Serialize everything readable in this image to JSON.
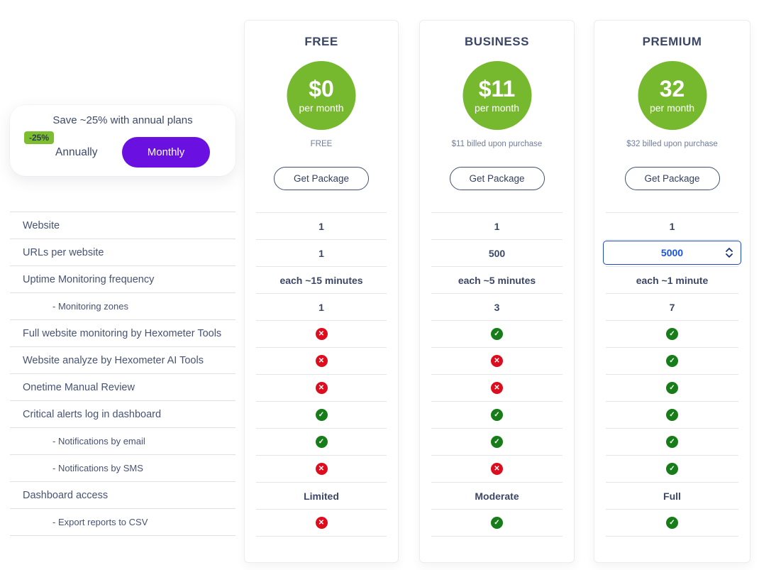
{
  "toggle": {
    "title": "Save ~25% with annual plans",
    "discount_badge": "-25%",
    "annually_label": "Annually",
    "monthly_label": "Monthly"
  },
  "features": [
    {
      "label": "Website",
      "indent": false
    },
    {
      "label": "URLs per website",
      "indent": false
    },
    {
      "label": "Uptime Monitoring frequency",
      "indent": false
    },
    {
      "label": "- Monitoring zones",
      "indent": true
    },
    {
      "label": "Full website monitoring by Hexometer Tools",
      "indent": false
    },
    {
      "label": "Website analyze by Hexometer AI Tools",
      "indent": false
    },
    {
      "label": "Onetime Manual Review",
      "indent": false
    },
    {
      "label": "Critical alerts log in dashboard",
      "indent": false
    },
    {
      "label": "- Notifications by email",
      "indent": true
    },
    {
      "label": "- Notifications by SMS",
      "indent": true
    },
    {
      "label": "Dashboard access",
      "indent": false
    },
    {
      "label": "- Export reports to CSV",
      "indent": true
    }
  ],
  "plans": [
    {
      "name": "FREE",
      "price": "$0",
      "period": "per month",
      "billing_note": "FREE",
      "cta_label": "Get Package",
      "values": [
        {
          "type": "text",
          "text": "1"
        },
        {
          "type": "text",
          "text": "1"
        },
        {
          "type": "text",
          "text": "each ~15 minutes"
        },
        {
          "type": "text",
          "text": "1"
        },
        {
          "type": "cross"
        },
        {
          "type": "cross"
        },
        {
          "type": "cross"
        },
        {
          "type": "check"
        },
        {
          "type": "check"
        },
        {
          "type": "cross"
        },
        {
          "type": "text",
          "text": "Limited"
        },
        {
          "type": "cross"
        }
      ]
    },
    {
      "name": "BUSINESS",
      "price": "$11",
      "period": "per month",
      "billing_note": "$11 billed upon purchase",
      "cta_label": "Get Package",
      "values": [
        {
          "type": "text",
          "text": "1"
        },
        {
          "type": "text",
          "text": "500"
        },
        {
          "type": "text",
          "text": "each ~5 minutes"
        },
        {
          "type": "text",
          "text": "3"
        },
        {
          "type": "check"
        },
        {
          "type": "cross"
        },
        {
          "type": "cross"
        },
        {
          "type": "check"
        },
        {
          "type": "check"
        },
        {
          "type": "cross"
        },
        {
          "type": "text",
          "text": "Moderate"
        },
        {
          "type": "check"
        }
      ]
    },
    {
      "name": "PREMIUM",
      "price": "32",
      "period": "per month",
      "billing_note": "$32 billed upon purchase",
      "cta_label": "Get Package",
      "values": [
        {
          "type": "text",
          "text": "1"
        },
        {
          "type": "select",
          "value": "5000"
        },
        {
          "type": "text",
          "text": "each ~1 minute"
        },
        {
          "type": "text",
          "text": "7"
        },
        {
          "type": "check"
        },
        {
          "type": "check"
        },
        {
          "type": "check"
        },
        {
          "type": "check"
        },
        {
          "type": "check"
        },
        {
          "type": "check"
        },
        {
          "type": "text",
          "text": "Full"
        },
        {
          "type": "check"
        }
      ]
    }
  ],
  "icons": {
    "check_glyph": "✓",
    "cross_glyph": "✕"
  },
  "colors": {
    "price_circle_green": "#77b92e",
    "monthly_active_purple": "#6a10e0",
    "discount_badge_green": "#7dbd30",
    "check_green": "#177d18",
    "cross_red": "#dd0d1d",
    "select_blue": "#1652ee",
    "heading_navy": "#3c4766"
  }
}
